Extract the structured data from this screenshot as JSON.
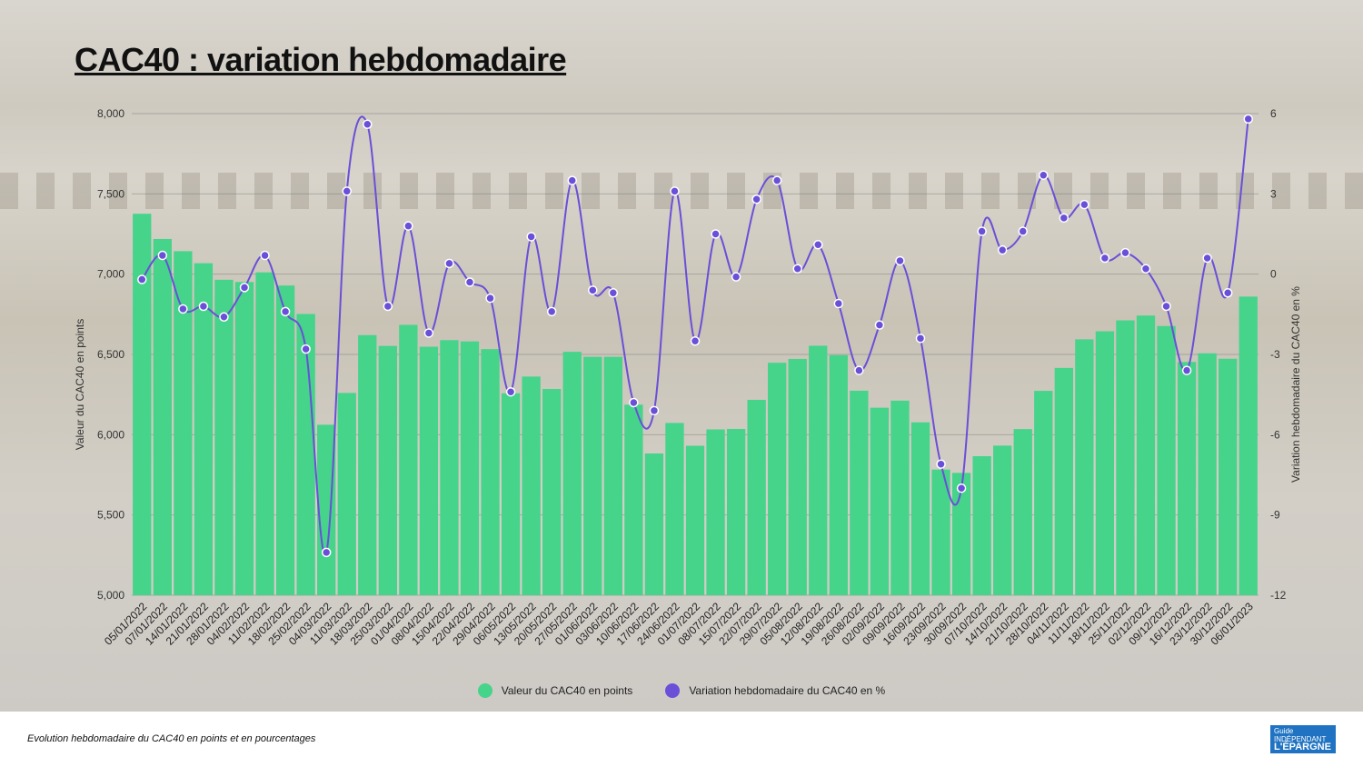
{
  "title": "CAC40 : variation hebdomadaire",
  "caption": "Evolution hebdomadaire du CAC40 en points et en pourcentages",
  "logo_text": "Le Guide indépendant de l'Epargne",
  "colors": {
    "bars": "#46d38a",
    "line": "#6a4fd8"
  },
  "chart_data": {
    "type": "bar+line",
    "title": "CAC40 : variation hebdomadaire",
    "ylabel_left": "Valeur du CAC40 en points",
    "ylabel_right": "Variation hebdomadaire du CAC40 en %",
    "ylim_left": [
      5000,
      8000
    ],
    "ylim_right": [
      -12,
      6
    ],
    "yticks_left": [
      "5,000",
      "5,500",
      "6,000",
      "6,500",
      "7,000",
      "7,500",
      "8,000"
    ],
    "yticks_left_values": [
      5000,
      5500,
      6000,
      6500,
      7000,
      7500,
      8000
    ],
    "yticks_right": [
      "-12",
      "-9",
      "-6",
      "-3",
      "0",
      "3",
      "6"
    ],
    "yticks_right_values": [
      -12,
      -9,
      -6,
      -3,
      0,
      3,
      6
    ],
    "grid": true,
    "legend_position": "bottom",
    "categories": [
      "05/01/2022",
      "07/01/2022",
      "14/01/2022",
      "21/01/2022",
      "28/01/2022",
      "04/02/2022",
      "11/02/2022",
      "18/02/2022",
      "25/02/2022",
      "04/03/2022",
      "11/03/2022",
      "18/03/2022",
      "25/03/2022",
      "01/04/2022",
      "08/04/2022",
      "15/04/2022",
      "22/04/2022",
      "29/04/2022",
      "06/05/2022",
      "13/05/2022",
      "20/05/2022",
      "27/05/2022",
      "01/06/2022",
      "03/06/2022",
      "10/06/2022",
      "17/06/2022",
      "24/06/2022",
      "01/07/2022",
      "08/07/2022",
      "15/07/2022",
      "22/07/2022",
      "29/07/2022",
      "05/08/2022",
      "12/08/2022",
      "19/08/2022",
      "26/08/2022",
      "02/09/2022",
      "09/09/2022",
      "16/09/2022",
      "23/09/2022",
      "30/09/2022",
      "07/10/2022",
      "14/10/2022",
      "21/10/2022",
      "28/10/2022",
      "04/11/2022",
      "11/11/2022",
      "18/11/2022",
      "25/11/2022",
      "02/12/2022",
      "09/12/2022",
      "16/12/2022",
      "23/12/2022",
      "30/12/2022",
      "06/01/2023"
    ],
    "series": [
      {
        "name": "Valeur du CAC40 en points",
        "type": "bar",
        "axis": "left",
        "values": [
          7376,
          7219,
          7143,
          7068,
          6965,
          6951,
          7011,
          6929,
          6752,
          6062,
          6260,
          6620,
          6553,
          6684,
          6548,
          6589,
          6581,
          6533,
          6258,
          6362,
          6285,
          6516,
          6485,
          6485,
          6187,
          5883,
          6073,
          5931,
          6033,
          6036,
          6217,
          6448,
          6472,
          6554,
          6495,
          6274,
          6168,
          6212,
          6077,
          5783,
          5762,
          5866,
          5932,
          6035,
          6273,
          6416,
          6594,
          6644,
          6712,
          6742,
          6677,
          6453,
          6507,
          6473,
          6860
        ]
      },
      {
        "name": "Variation hebdomadaire du CAC40 en %",
        "type": "line",
        "axis": "right",
        "values": [
          -0.2,
          0.7,
          -1.3,
          -1.2,
          -1.6,
          -0.5,
          0.7,
          -1.4,
          -2.8,
          -10.4,
          3.1,
          5.6,
          -1.2,
          1.8,
          -2.2,
          0.4,
          -0.3,
          -0.9,
          -4.4,
          1.4,
          -1.4,
          3.5,
          -0.6,
          -0.7,
          -4.8,
          -5.1,
          3.1,
          -2.5,
          1.5,
          -0.1,
          2.8,
          3.5,
          0.2,
          1.1,
          -1.1,
          -3.6,
          -1.9,
          0.5,
          -2.4,
          -7.1,
          -8.0,
          1.6,
          0.9,
          1.6,
          3.7,
          2.1,
          2.6,
          0.6,
          0.8,
          0.2,
          -1.2,
          -3.6,
          0.6,
          -0.7,
          5.8
        ]
      }
    ]
  }
}
